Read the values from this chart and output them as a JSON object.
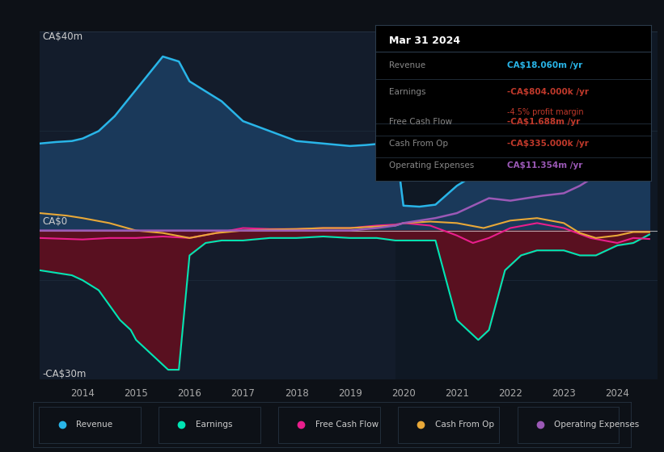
{
  "bg_color": "#0d1117",
  "plot_bg_color": "#131c2b",
  "ylim": [
    -30,
    40
  ],
  "xlim": [
    2013.2,
    2024.75
  ],
  "x_ticks": [
    2014,
    2015,
    2016,
    2017,
    2018,
    2019,
    2020,
    2021,
    2022,
    2023,
    2024
  ],
  "ylabel_top": "CA$40m",
  "ylabel_bottom": "-CA$30m",
  "ylabel_mid": "CA$0",
  "revenue": {
    "color": "#29b5e8",
    "fill_color": "#1b3a5c",
    "x": [
      2013.2,
      2013.5,
      2013.8,
      2014.0,
      2014.3,
      2014.6,
      2014.9,
      2015.2,
      2015.5,
      2015.8,
      2016.0,
      2016.3,
      2016.6,
      2017.0,
      2017.5,
      2018.0,
      2018.5,
      2018.8,
      2019.0,
      2019.3,
      2019.6,
      2019.85,
      2020.0,
      2020.3,
      2020.6,
      2021.0,
      2021.3,
      2021.6,
      2021.9,
      2022.2,
      2022.5,
      2022.8,
      2023.0,
      2023.3,
      2023.5,
      2023.7,
      2023.85,
      2024.0,
      2024.3,
      2024.6
    ],
    "y": [
      17.5,
      17.8,
      18.0,
      18.5,
      20,
      23,
      27,
      31,
      35,
      34,
      30,
      28,
      26,
      22,
      20,
      18,
      17.5,
      17.2,
      17.0,
      17.2,
      17.5,
      17.8,
      5.0,
      4.8,
      5.2,
      9,
      11,
      13,
      14,
      13,
      14,
      14,
      15,
      22,
      28,
      33,
      35,
      28,
      25,
      18
    ]
  },
  "earnings": {
    "color": "#00e5b4",
    "fill_color": "#5a1020",
    "x": [
      2013.2,
      2013.5,
      2013.8,
      2014.0,
      2014.3,
      2014.5,
      2014.7,
      2014.9,
      2015.0,
      2015.2,
      2015.4,
      2015.6,
      2015.8,
      2016.0,
      2016.3,
      2016.6,
      2017.0,
      2017.5,
      2018.0,
      2018.5,
      2019.0,
      2019.5,
      2019.85,
      2020.0,
      2020.3,
      2020.6,
      2021.0,
      2021.2,
      2021.4,
      2021.6,
      2021.9,
      2022.2,
      2022.5,
      2022.8,
      2023.0,
      2023.3,
      2023.6,
      2024.0,
      2024.3,
      2024.6
    ],
    "y": [
      -8,
      -8.5,
      -9,
      -10,
      -12,
      -15,
      -18,
      -20,
      -22,
      -24,
      -26,
      -28,
      -28,
      -5,
      -2.5,
      -2,
      -2,
      -1.5,
      -1.5,
      -1.2,
      -1.5,
      -1.5,
      -2,
      -2,
      -2,
      -2,
      -18,
      -20,
      -22,
      -20,
      -8,
      -5,
      -4,
      -4,
      -4,
      -5,
      -5,
      -3,
      -2.5,
      -0.8
    ]
  },
  "free_cash_flow": {
    "color": "#e91e8c",
    "x": [
      2013.2,
      2014.0,
      2014.5,
      2015.0,
      2015.5,
      2016.0,
      2016.5,
      2017.0,
      2017.5,
      2018.0,
      2018.5,
      2019.0,
      2019.5,
      2019.85,
      2020.0,
      2020.5,
      2021.0,
      2021.3,
      2021.6,
      2022.0,
      2022.5,
      2023.0,
      2023.5,
      2024.0,
      2024.3,
      2024.6
    ],
    "y": [
      -1.5,
      -1.8,
      -1.5,
      -1.5,
      -1.2,
      -1.5,
      -0.5,
      0.5,
      0.3,
      0.3,
      0.5,
      0.5,
      1.0,
      1.2,
      1.5,
      1.0,
      -1.0,
      -2.5,
      -1.5,
      0.5,
      1.5,
      0.5,
      -1.5,
      -2.5,
      -1.5,
      -1.7
    ]
  },
  "cash_from_op": {
    "color": "#e8a838",
    "x": [
      2013.2,
      2013.7,
      2014.0,
      2014.5,
      2015.0,
      2015.5,
      2016.0,
      2016.5,
      2017.0,
      2017.5,
      2018.0,
      2018.5,
      2019.0,
      2019.5,
      2019.85,
      2020.0,
      2020.5,
      2021.0,
      2021.5,
      2022.0,
      2022.5,
      2023.0,
      2023.3,
      2023.6,
      2024.0,
      2024.3,
      2024.6
    ],
    "y": [
      3.5,
      3.0,
      2.5,
      1.5,
      0.0,
      -0.5,
      -1.5,
      -0.5,
      0.0,
      0.2,
      0.3,
      0.5,
      0.5,
      0.8,
      1.0,
      1.5,
      1.8,
      1.5,
      0.5,
      2.0,
      2.5,
      1.5,
      -0.5,
      -1.5,
      -1.0,
      -0.3,
      -0.3
    ]
  },
  "operating_expenses": {
    "color": "#9b59b6",
    "x": [
      2013.2,
      2014.0,
      2015.0,
      2016.0,
      2017.0,
      2018.0,
      2018.5,
      2019.0,
      2019.5,
      2019.85,
      2020.0,
      2020.3,
      2020.6,
      2021.0,
      2021.3,
      2021.6,
      2022.0,
      2022.3,
      2022.6,
      2023.0,
      2023.3,
      2023.6,
      2023.8,
      2024.0,
      2024.3,
      2024.6
    ],
    "y": [
      0,
      0,
      0,
      0,
      0,
      0,
      0,
      0,
      0.5,
      1.0,
      1.5,
      2.0,
      2.5,
      3.5,
      5.0,
      6.5,
      6.0,
      6.5,
      7.0,
      7.5,
      9.0,
      11.0,
      12.5,
      13.5,
      11.5,
      11.4
    ]
  },
  "title": "Mar 31 2024",
  "info_rows": [
    {
      "label": "Revenue",
      "value": "CA$18.060m /yr",
      "value_color": "#29b5e8",
      "extra": null
    },
    {
      "label": "Earnings",
      "value": "-CA$804.000k /yr",
      "value_color": "#c0392b",
      "extra": "-4.5% profit margin"
    },
    {
      "label": "Free Cash Flow",
      "value": "-CA$1.688m /yr",
      "value_color": "#c0392b",
      "extra": null
    },
    {
      "label": "Cash From Op",
      "value": "-CA$335.000k /yr",
      "value_color": "#c0392b",
      "extra": null
    },
    {
      "label": "Operating Expenses",
      "value": "CA$11.354m /yr",
      "value_color": "#9b59b6",
      "extra": null
    }
  ],
  "legend_items": [
    {
      "label": "Revenue",
      "color": "#29b5e8"
    },
    {
      "label": "Earnings",
      "color": "#00e5b4"
    },
    {
      "label": "Free Cash Flow",
      "color": "#e91e8c"
    },
    {
      "label": "Cash From Op",
      "color": "#e8a838"
    },
    {
      "label": "Operating Expenses",
      "color": "#9b59b6"
    }
  ]
}
